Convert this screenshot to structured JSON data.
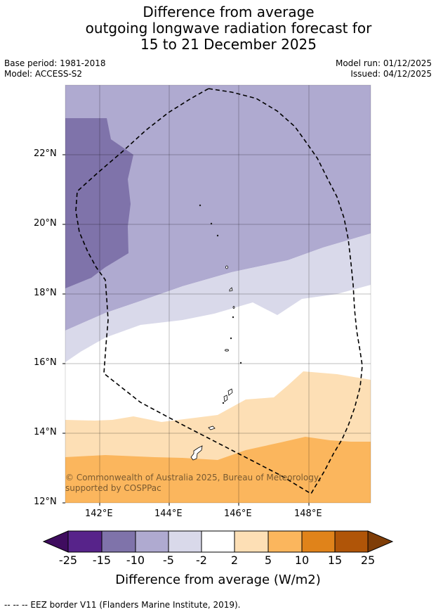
{
  "title": {
    "line1": "Difference from average",
    "line2": "outgoing longwave radiation forecast for",
    "line3": "15 to 21 December 2025"
  },
  "meta": {
    "base_period": "Base period: 1981-2018",
    "model": "Model: ACCESS-S2",
    "model_run": "Model run: 01/12/2025",
    "issued": "Issued: 04/12/2025"
  },
  "map": {
    "lat_labels": [
      "22°N",
      "20°N",
      "18°N",
      "16°N",
      "14°N",
      "12°N"
    ],
    "lon_labels": [
      "142°E",
      "144°E",
      "146°E",
      "148°E"
    ],
    "copyright": "© Commonwealth of Australia 2025, Bureau of Meteorology, supported by COSPPac"
  },
  "colorbar": {
    "ticks": [
      "-25",
      "-15",
      "-10",
      "-5",
      "-2",
      "2",
      "5",
      "10",
      "15",
      "25"
    ],
    "colors": {
      "lt_minus25": "#3f0c5f",
      "m25_m15": "#57238a",
      "m15_m10": "#7f73aa",
      "m10_m5": "#afaad0",
      "m5_m2": "#d9d9ea",
      "m2_2": "#ffffff",
      "p2_p5": "#fddfb5",
      "p5_p10": "#fbb65d",
      "p10_p15": "#e0831a",
      "p15_p25": "#b05508",
      "gt_p25": "#7f3d07"
    },
    "title": "Difference from average (W/m2)"
  },
  "footnote": "-- -- -- EEZ border V11 (Flanders Marine Institute, 2019)."
}
